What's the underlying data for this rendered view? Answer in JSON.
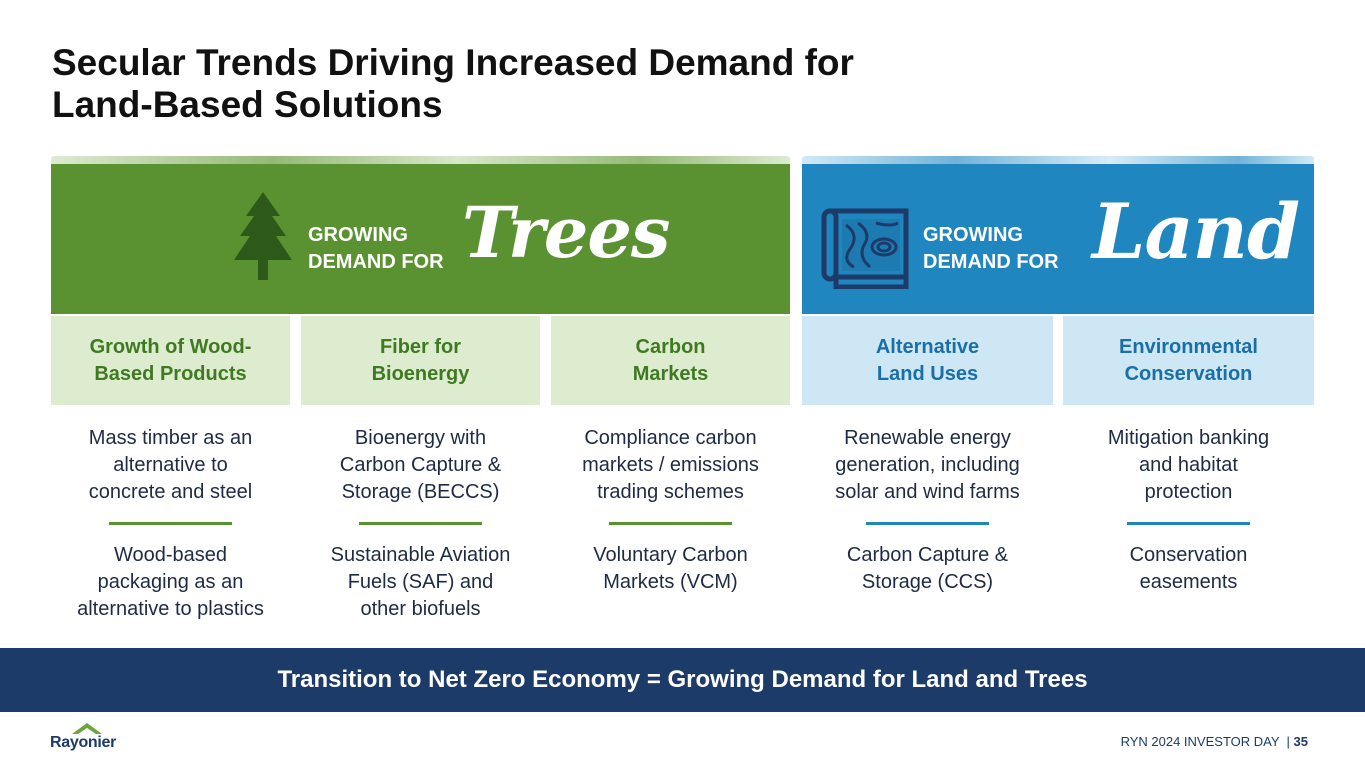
{
  "title": {
    "line1": "Secular Trends Driving Increased Demand for",
    "line2": "Land-Based Solutions"
  },
  "trees_panel": {
    "growing_line1": "GROWING",
    "growing_line2": "DEMAND FOR",
    "script_word": "Trees",
    "icon": "pine-tree-icon",
    "color": "#5b9231"
  },
  "land_panel": {
    "growing_line1": "GROWING",
    "growing_line2": "DEMAND FOR",
    "script_word": "Land",
    "icon": "land-map-icon",
    "color": "#1f86bf"
  },
  "columns": [
    {
      "header": [
        "Growth of Wood-",
        "Based Products"
      ],
      "item1": [
        "Mass timber as an",
        "alternative to",
        "concrete and steel"
      ],
      "item2": [
        "Wood-based",
        "packaging as an",
        "alternative to plastics"
      ]
    },
    {
      "header": [
        "Fiber for",
        "Bioenergy"
      ],
      "item1": [
        "Bioenergy with",
        "Carbon Capture &",
        "Storage (BECCS)"
      ],
      "item2": [
        "Sustainable Aviation",
        "Fuels (SAF) and",
        "other biofuels"
      ]
    },
    {
      "header": [
        "Carbon",
        "Markets"
      ],
      "item1": [
        "Compliance carbon",
        "markets / emissions",
        "trading schemes"
      ],
      "item2": [
        "Voluntary Carbon",
        "Markets (VCM)"
      ]
    },
    {
      "header": [
        "Alternative",
        "Land Uses"
      ],
      "item1": [
        "Renewable energy",
        "generation, including",
        "solar and wind farms"
      ],
      "item2": [
        "Carbon Capture &",
        "Storage (CCS)"
      ]
    },
    {
      "header": [
        "Environmental",
        "Conservation"
      ],
      "item1": [
        "Mitigation banking",
        "and habitat",
        "protection"
      ],
      "item2": [
        "Conservation",
        "easements"
      ]
    }
  ],
  "banner": "Transition to Net Zero Economy = Growing Demand for Land and Trees",
  "logo_text": "Rayonier",
  "footer": {
    "label": "RYN 2024 INVESTOR DAY  |",
    "page": "35"
  }
}
